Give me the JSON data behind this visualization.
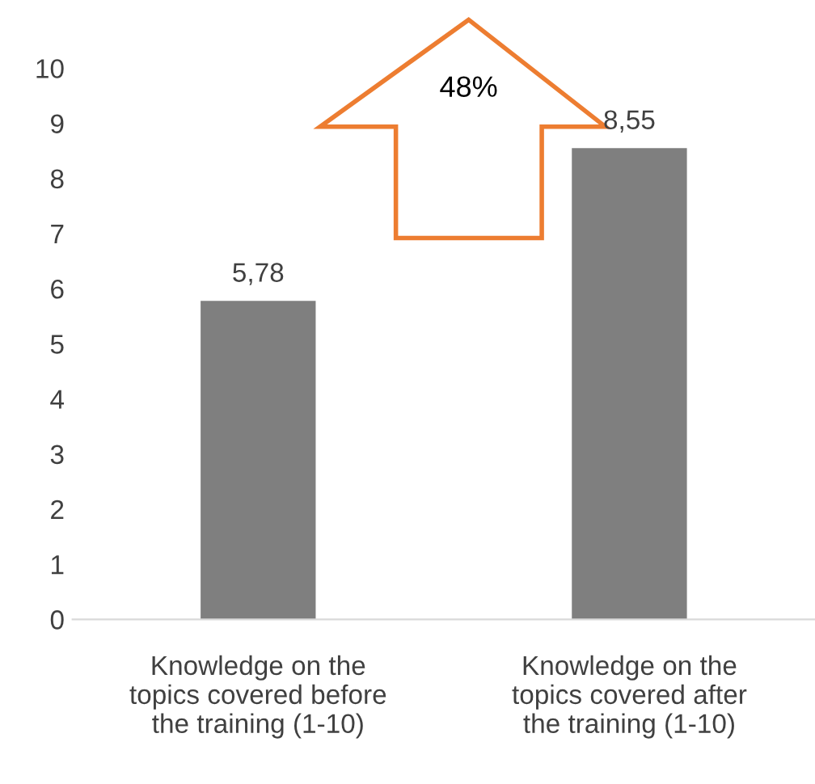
{
  "chart_data": {
    "type": "bar",
    "categories": [
      "Knowledge on the\ntopics covered before\nthe training (1-10)",
      "Knowledge on the\ntopics covered after\nthe training (1-10)"
    ],
    "values": [
      5.78,
      8.55
    ],
    "color": "#7f7f7f",
    "value_labels": [
      "5,78",
      "8,55"
    ],
    "ylim": [
      0,
      10
    ],
    "yticks": [
      0,
      1,
      2,
      3,
      4,
      5,
      6,
      7,
      8,
      9,
      10
    ],
    "grid": false,
    "legend": false,
    "annotations": [
      "48%"
    ]
  }
}
